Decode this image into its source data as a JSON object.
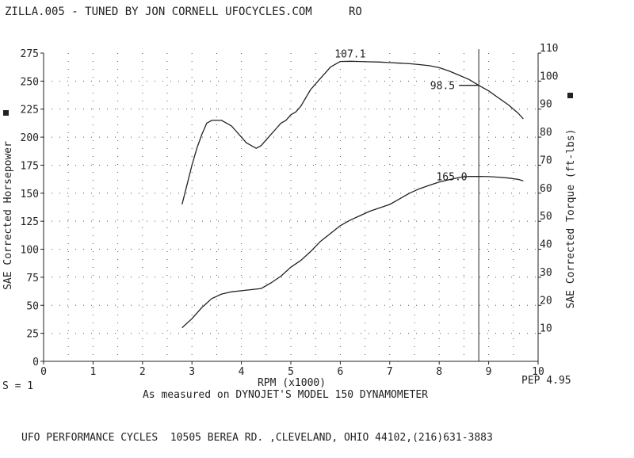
{
  "header": {
    "title": "ZILLA.005 - TUNED BY JON CORNELL UFOCYCLES.COM",
    "run_code": "RO"
  },
  "footer": {
    "smoothing": "S = 1",
    "pep": "PEP 4.95",
    "measured_by": "As measured on DYNOJET'S MODEL 150 DYNAMOMETER",
    "address": "UFO PERFORMANCE CYCLES  10505 BEREA RD. ,CLEVELAND, OHIO 44102,(216)631-3883"
  },
  "chart_data": {
    "type": "line",
    "xlabel": "RPM (x1000)",
    "ylabel_left": "SAE Corrected Horsepower",
    "ylabel_right": "SAE Corrected Torque (ft-lbs)",
    "x_ticks": [
      "0",
      "1",
      "2",
      "3",
      "4",
      "5",
      "6",
      "7",
      "8",
      "9",
      "10"
    ],
    "y_left_ticks": [
      "0",
      "25",
      "50",
      "75",
      "100",
      "125",
      "150",
      "175",
      "200",
      "225",
      "250",
      "275"
    ],
    "y_right_ticks": [
      "10",
      "20",
      "30",
      "40",
      "50",
      "60",
      "70",
      "80",
      "90",
      "100",
      "110"
    ],
    "xlim": [
      0,
      10
    ],
    "ylim_left": [
      0,
      275
    ],
    "ylim_right": [
      0,
      110
    ],
    "grid": "dotted",
    "marker_rpm": 8.8,
    "colors": {
      "line": "#222222",
      "grid": "#555555"
    },
    "series": [
      {
        "axis": "right",
        "x": [
          2.8,
          2.9,
          3.0,
          3.1,
          3.2,
          3.3,
          3.4,
          3.5,
          3.6,
          3.7,
          3.8,
          3.9,
          4.0,
          4.1,
          4.2,
          4.3,
          4.4,
          4.5,
          4.6,
          4.7,
          4.8,
          4.9,
          5.0,
          5.1,
          5.2,
          5.3,
          5.4,
          5.5,
          5.6,
          5.7,
          5.8,
          5.9,
          6.0,
          6.2,
          6.4,
          6.6,
          6.8,
          7.0,
          7.2,
          7.4,
          7.6,
          7.8,
          8.0,
          8.2,
          8.4,
          8.6,
          8.8,
          9.0,
          9.2,
          9.4,
          9.6,
          9.7
        ],
        "values": [
          56,
          63,
          70,
          76,
          81,
          85,
          86,
          86,
          86,
          85,
          84,
          82,
          80,
          78,
          77,
          76,
          77,
          79,
          81,
          83,
          85,
          86,
          88,
          89,
          91,
          94,
          97,
          99,
          101,
          103,
          105,
          106,
          107,
          107.1,
          107,
          106.9,
          106.8,
          106.6,
          106.4,
          106.2,
          105.9,
          105.5,
          104.8,
          103.6,
          102.1,
          100.6,
          98.5,
          96.5,
          94,
          91.5,
          88.5,
          86.5
        ]
      },
      {
        "axis": "left",
        "x": [
          2.8,
          3.0,
          3.2,
          3.4,
          3.6,
          3.8,
          4.0,
          4.2,
          4.4,
          4.6,
          4.8,
          5.0,
          5.2,
          5.4,
          5.6,
          5.8,
          6.0,
          6.2,
          6.4,
          6.6,
          6.8,
          7.0,
          7.2,
          7.4,
          7.6,
          7.8,
          8.0,
          8.2,
          8.4,
          8.6,
          8.8,
          9.0,
          9.2,
          9.4,
          9.6,
          9.7
        ],
        "values": [
          30,
          38,
          48,
          56,
          60,
          62,
          63,
          64,
          65,
          70,
          76,
          84,
          90,
          98,
          107,
          114,
          121,
          126,
          130,
          134,
          137,
          140,
          145,
          150,
          154,
          157,
          160,
          162,
          164,
          165,
          165,
          164.8,
          164.3,
          163.5,
          162.3,
          161
        ]
      }
    ],
    "annotations": [
      {
        "text": "107.1",
        "x": 6.2,
        "y": 107.1,
        "axis": "right"
      },
      {
        "text": "98.5",
        "x": 8.8,
        "y": 98.5,
        "axis": "right"
      },
      {
        "text": "165.0",
        "x": 8.6,
        "y": 165,
        "axis": "left"
      }
    ]
  }
}
